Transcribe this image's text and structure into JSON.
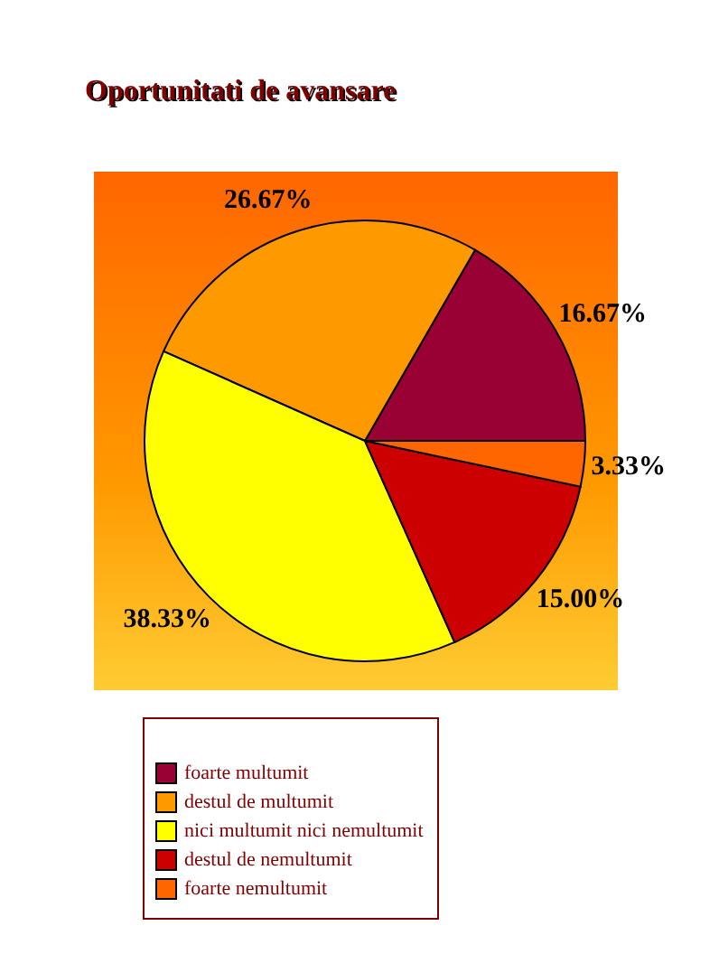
{
  "chart_data": {
    "type": "pie",
    "title": "Oportunitati de avansare",
    "categories": [
      "foarte multumit",
      "destul de multumit",
      "nici multumit nici nemultumit",
      "destul de nemultumit",
      "foarte nemultumit"
    ],
    "values": [
      16.67,
      26.67,
      38.33,
      15.0,
      3.33
    ],
    "colors": [
      "#990033",
      "#ff9900",
      "#ffff00",
      "#cc0000",
      "#ff6600"
    ],
    "value_labels": [
      "16.67%",
      "26.67%",
      "38.33%",
      "15.00%",
      "3.33%"
    ],
    "legend": "bottom"
  }
}
